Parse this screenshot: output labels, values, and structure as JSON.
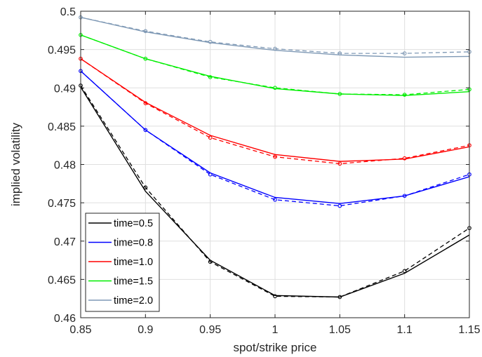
{
  "chart_data": {
    "type": "line",
    "xlabel": "spot/strike price",
    "ylabel": "implied volatility",
    "xlim": [
      0.85,
      1.15
    ],
    "ylim": [
      0.46,
      0.5
    ],
    "grid": true,
    "legend_position": "bottom-left",
    "xticks": [
      "0.85",
      "0.9",
      "0.95",
      "1",
      "1.05",
      "1.1",
      "1.15"
    ],
    "yticks": [
      "0.46",
      "0.465",
      "0.47",
      "0.475",
      "0.48",
      "0.485",
      "0.49",
      "0.495",
      "0.5"
    ],
    "x": [
      0.85,
      0.9,
      0.95,
      1.0,
      1.05,
      1.1,
      1.15
    ],
    "series": [
      {
        "name": "time=0.5",
        "color": "#000000",
        "solid": [
          0.4901,
          0.4765,
          0.4675,
          0.4629,
          0.4627,
          0.4658,
          0.4708
        ],
        "dashed": [
          0.4903,
          0.477,
          0.4673,
          0.4628,
          0.4627,
          0.4661,
          0.4717
        ]
      },
      {
        "name": "time=0.8",
        "color": "#0000ff",
        "solid": [
          0.4922,
          0.4845,
          0.4789,
          0.4757,
          0.4749,
          0.4759,
          0.4784
        ],
        "dashed": [
          0.4922,
          0.4845,
          0.4787,
          0.4754,
          0.4746,
          0.4759,
          0.4787
        ]
      },
      {
        "name": "time=1.0",
        "color": "#ff0000",
        "solid": [
          0.4938,
          0.4881,
          0.4838,
          0.4813,
          0.4804,
          0.4807,
          0.4823
        ],
        "dashed": [
          0.4938,
          0.488,
          0.4835,
          0.481,
          0.4801,
          0.4808,
          0.4825
        ]
      },
      {
        "name": "time=1.5",
        "color": "#00ee00",
        "solid": [
          0.4969,
          0.4938,
          0.4915,
          0.4899,
          0.4892,
          0.489,
          0.4895
        ],
        "dashed": [
          0.4969,
          0.4938,
          0.4914,
          0.49,
          0.4892,
          0.4891,
          0.4898
        ]
      },
      {
        "name": "time=2.0",
        "color": "#7f99b5",
        "solid": [
          0.4992,
          0.4973,
          0.4959,
          0.4949,
          0.4943,
          0.494,
          0.4941
        ],
        "dashed": [
          0.4992,
          0.4974,
          0.496,
          0.4951,
          0.4945,
          0.4945,
          0.4947
        ]
      }
    ]
  }
}
